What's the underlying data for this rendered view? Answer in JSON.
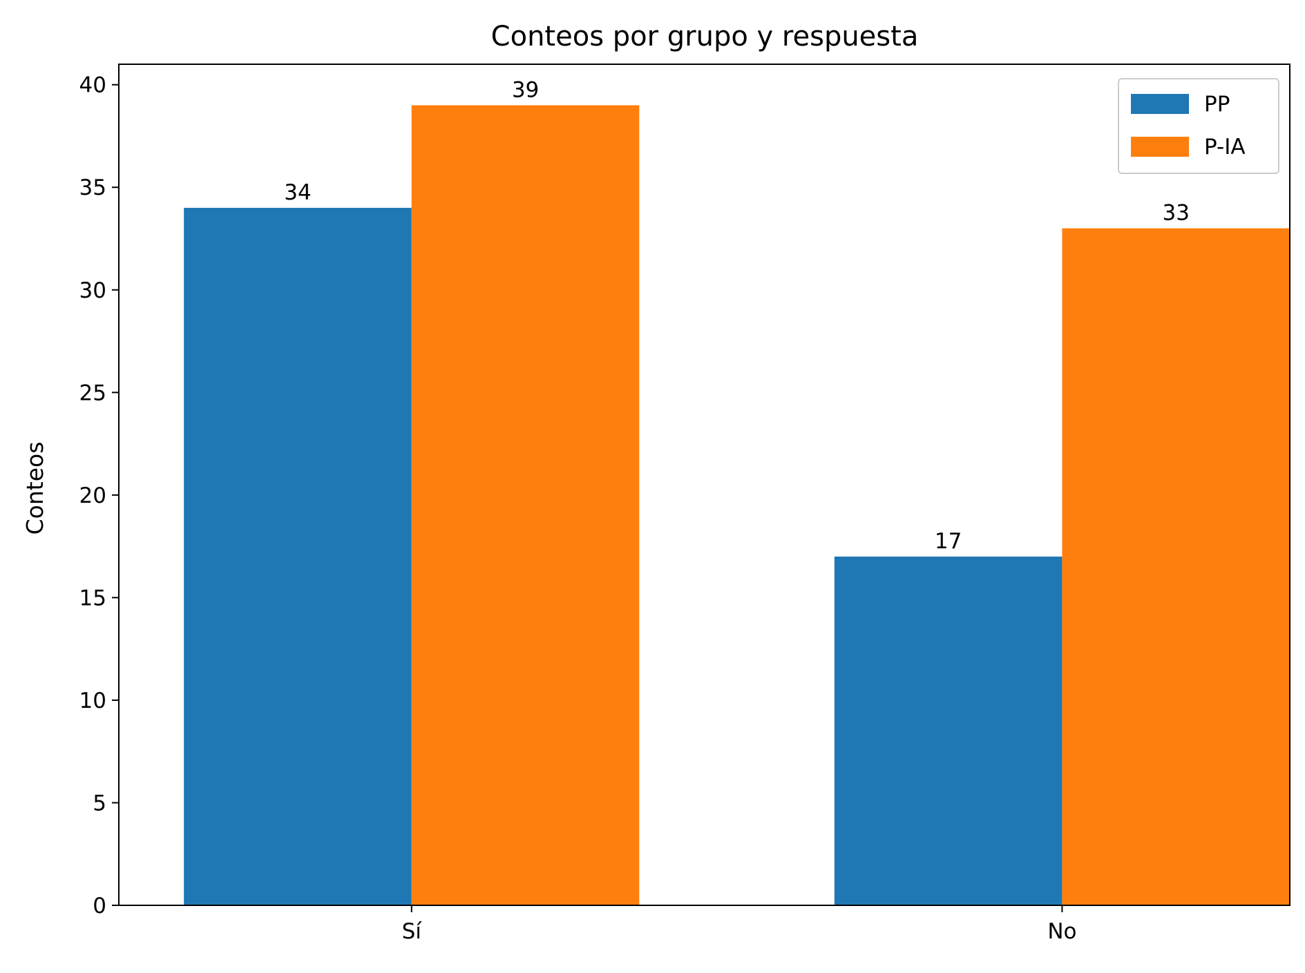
{
  "chart_data": {
    "type": "bar",
    "title": "Conteos por grupo y respuesta",
    "xlabel": "",
    "ylabel": "Conteos",
    "categories": [
      "Sí",
      "No"
    ],
    "series": [
      {
        "name": "PP",
        "color": "#1f77b4",
        "values": [
          34,
          17
        ]
      },
      {
        "name": "P-IA",
        "color": "#ff7f0e",
        "values": [
          39,
          33
        ]
      }
    ],
    "ylim": [
      0,
      41
    ],
    "yticks": [
      0,
      5,
      10,
      15,
      20,
      25,
      30,
      35,
      40
    ],
    "grid": false,
    "legend_position": "top-right",
    "data_labels": true
  }
}
